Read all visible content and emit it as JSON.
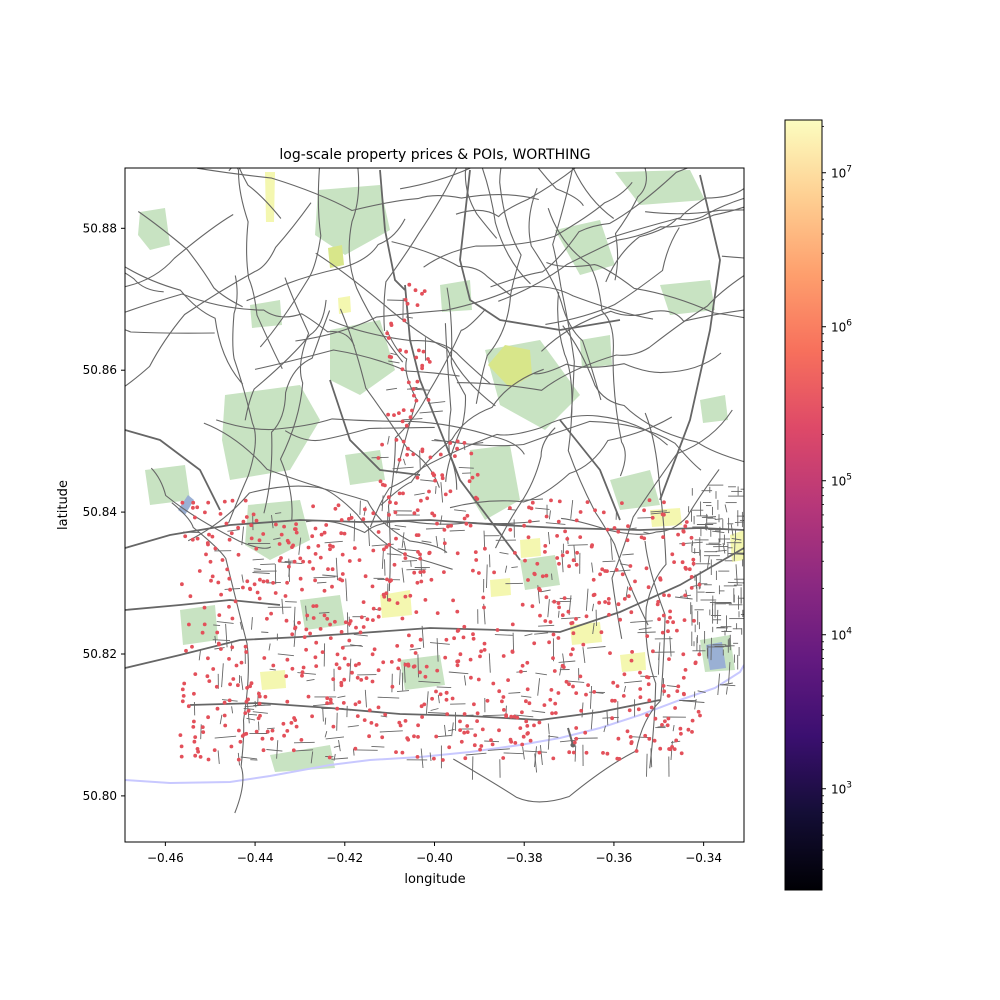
{
  "chart_data": {
    "type": "map",
    "title": "log-scale property prices & POIs, WORTHING",
    "xlabel": "longitude",
    "ylabel": "latitude",
    "xlim": [
      -0.469,
      -0.331
    ],
    "ylim": [
      50.7935,
      50.8885
    ],
    "x_ticks": [
      {
        "value": -0.46,
        "label": "−0.46"
      },
      {
        "value": -0.44,
        "label": "−0.44"
      },
      {
        "value": -0.42,
        "label": "−0.42"
      },
      {
        "value": -0.4,
        "label": "−0.40"
      },
      {
        "value": -0.38,
        "label": "−0.38"
      },
      {
        "value": -0.36,
        "label": "−0.36"
      },
      {
        "value": -0.34,
        "label": "−0.34"
      }
    ],
    "y_ticks": [
      {
        "value": 50.8,
        "label": "50.80"
      },
      {
        "value": 50.82,
        "label": "50.82"
      },
      {
        "value": 50.84,
        "label": "50.84"
      },
      {
        "value": 50.86,
        "label": "50.86"
      },
      {
        "value": 50.88,
        "label": "50.88"
      }
    ],
    "colorbar": {
      "scale": "log",
      "colormap": "magma",
      "range": [
        220,
        22000000
      ],
      "ticks": [
        {
          "value": 1000,
          "base": "10",
          "exp": "3"
        },
        {
          "value": 10000,
          "base": "10",
          "exp": "4"
        },
        {
          "value": 100000,
          "base": "10",
          "exp": "5"
        },
        {
          "value": 1000000,
          "base": "10",
          "exp": "6"
        },
        {
          "value": 10000000,
          "base": "10",
          "exp": "7"
        }
      ]
    },
    "colors": {
      "roads": "#666666",
      "green_space": "#c8e3c2",
      "poi_yellow": "#f4f7b0",
      "coastline": "#c8c8ff",
      "water": "#9ab0d4",
      "property_points": "#e3505a"
    }
  }
}
